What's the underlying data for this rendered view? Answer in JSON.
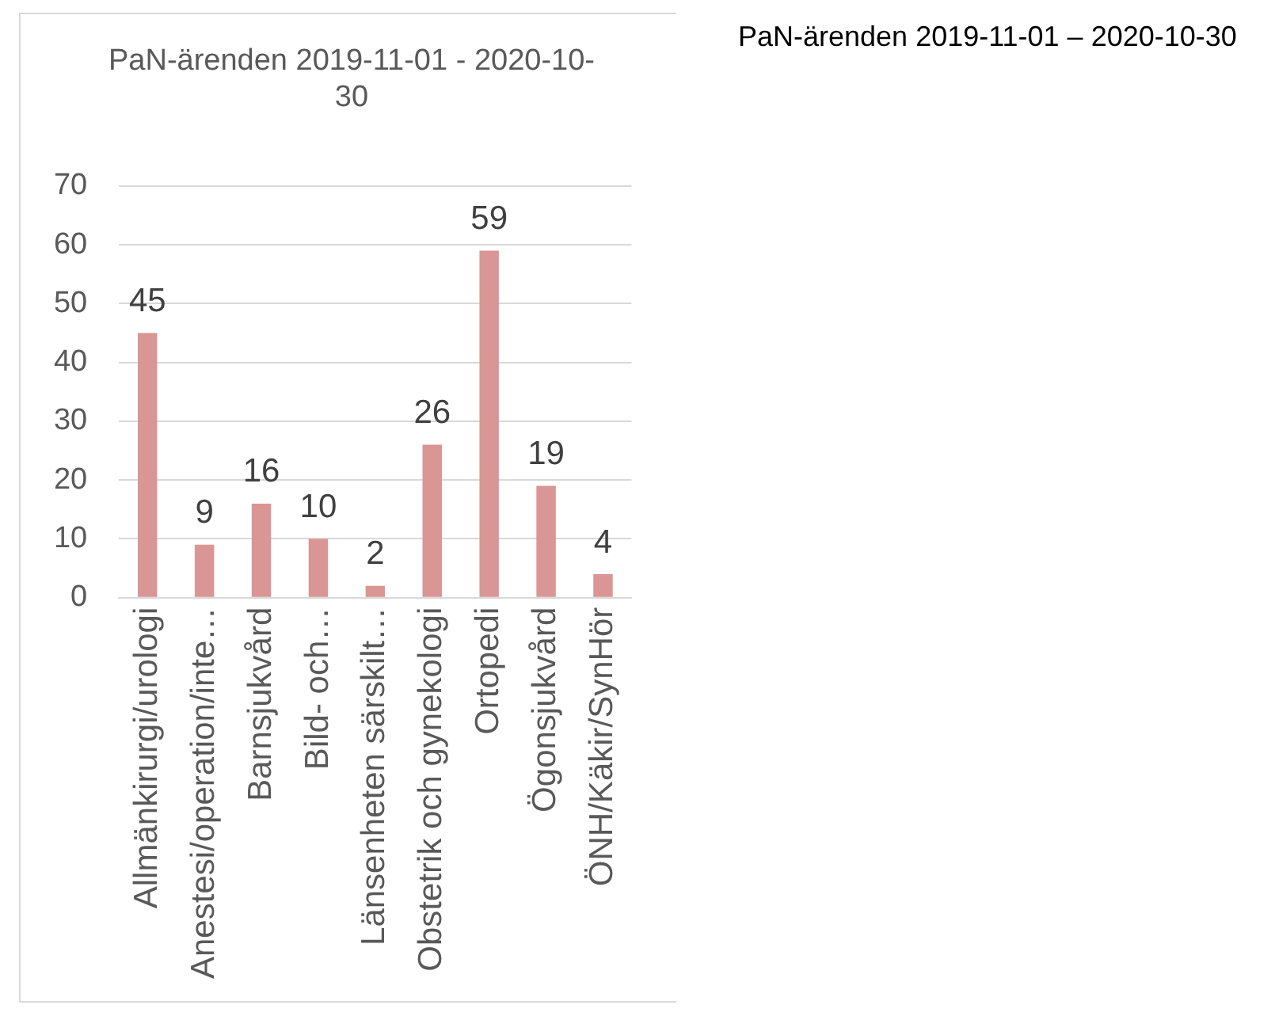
{
  "chart_data": {
    "type": "bar",
    "title": "PaN-ärenden 2019-11-01 - 2020-10-30",
    "annotations": [
      "PaN-ärenden 2019-11-01 – 2020-10-30"
    ],
    "categories": [
      "Allmänkirurgi/urologi",
      "Anestesi/operation/inte…",
      "Barnsjukvård",
      "Bild- och…",
      "Länsenheten särskilt…",
      "Obstetrik och gynekologi",
      "Ortopedi",
      "Ögonsjukvård",
      "ÖNH/Käkir/SynHör"
    ],
    "values": [
      45,
      9,
      16,
      10,
      2,
      26,
      59,
      19,
      4
    ],
    "color": "#d99694",
    "ylim": [
      0,
      70
    ],
    "yticks": [
      0,
      10,
      20,
      30,
      40,
      50,
      60,
      70
    ],
    "grid": "y",
    "data_labels": true,
    "legend": false
  }
}
